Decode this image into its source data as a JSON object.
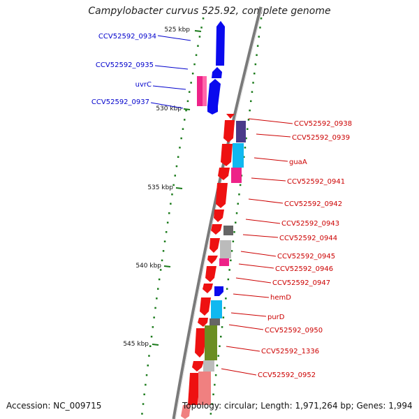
{
  "title": "Campylobacter curvus 525.92, complete genome",
  "accession": "Accession: NC_009715",
  "topology": "Topology: circular; Length: 1,971,264 bp; Genes: 1,994",
  "colors": {
    "left_label": "#0000cc",
    "right_label": "#cc0000",
    "backbone": "#7a7a7a",
    "tick_dot": "#1a7a1a",
    "red": "#ee1111",
    "blue": "#0a0aee",
    "magenta": "#ee2288",
    "navy": "#4a3a8a",
    "cyan": "#10b8f0",
    "darkgray": "#666666",
    "lightgray": "#bbbbbb",
    "olive": "#6b8e23",
    "salmon": "#f08080"
  },
  "scale_labels": [
    "525 kbp",
    "530 kbp",
    "535 kbp",
    "540 kbp",
    "545 kbp"
  ],
  "left_genes": [
    "CCV52592_0934",
    "CCV52592_0935",
    "uvrC",
    "CCV52592_0937"
  ],
  "right_genes": [
    "CCV52592_0938",
    "CCV52592_0939",
    "guaA",
    "CCV52592_0941",
    "CCV52592_0942",
    "CCV52592_0943",
    "CCV52592_0944",
    "CCV52592_0945",
    "CCV52592_0946",
    "CCV52592_0947",
    "hemD",
    "purD",
    "CCV52592_0950",
    "CCV52592_1336",
    "CCV52592_0952"
  ]
}
